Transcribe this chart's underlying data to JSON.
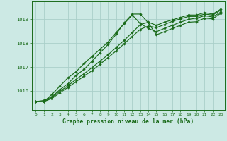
{
  "background_color": "#cce9e4",
  "grid_color": "#aacfc9",
  "line_color": "#1a6b1a",
  "title": "Graphe pression niveau de la mer (hPa)",
  "xlim": [
    -0.5,
    23.5
  ],
  "ylim": [
    1015.2,
    1019.75
  ],
  "yticks": [
    1016,
    1017,
    1018,
    1019
  ],
  "xticks": [
    0,
    1,
    2,
    3,
    4,
    5,
    6,
    7,
    8,
    9,
    10,
    11,
    12,
    13,
    14,
    15,
    16,
    17,
    18,
    19,
    20,
    21,
    22,
    23
  ],
  "series": {
    "line1": [
      1015.55,
      1015.6,
      1015.75,
      1016.05,
      1016.3,
      1016.65,
      1016.9,
      1017.25,
      1017.6,
      1017.95,
      1018.38,
      1018.85,
      1019.22,
      1019.22,
      1018.85,
      1018.35,
      1018.48,
      1018.62,
      1018.75,
      1018.88,
      1018.9,
      1019.05,
      1019.02,
      1019.25
    ],
    "line2": [
      1015.55,
      1015.55,
      1015.85,
      1016.2,
      1016.55,
      1016.8,
      1017.15,
      1017.45,
      1017.75,
      1018.05,
      1018.45,
      1018.82,
      1019.18,
      1018.82,
      1018.62,
      1018.48,
      1018.62,
      1018.75,
      1018.88,
      1019.0,
      1019.05,
      1019.15,
      1019.1,
      1019.3
    ],
    "line3": [
      1015.55,
      1015.55,
      1015.72,
      1015.98,
      1016.22,
      1016.48,
      1016.72,
      1016.98,
      1017.25,
      1017.52,
      1017.82,
      1018.12,
      1018.45,
      1018.78,
      1018.88,
      1018.75,
      1018.88,
      1018.98,
      1019.08,
      1019.18,
      1019.18,
      1019.28,
      1019.22,
      1019.42
    ],
    "line4": [
      1015.55,
      1015.55,
      1015.68,
      1015.92,
      1016.15,
      1016.38,
      1016.62,
      1016.85,
      1017.12,
      1017.4,
      1017.68,
      1017.98,
      1018.28,
      1018.58,
      1018.72,
      1018.65,
      1018.78,
      1018.92,
      1019.02,
      1019.12,
      1019.12,
      1019.22,
      1019.18,
      1019.38
    ]
  }
}
